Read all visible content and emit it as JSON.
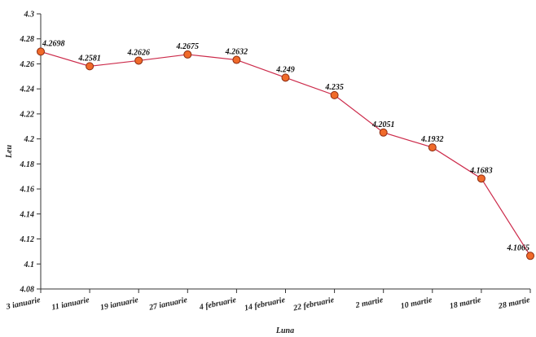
{
  "chart_data": {
    "type": "line",
    "categories": [
      "3 ianuarie",
      "11 ianuarie",
      "19 ianuarie",
      "27 ianuarie",
      "4 februarie",
      "14 februarie",
      "22 februarie",
      "2 martie",
      "10 martie",
      "18 martie",
      "28 martie"
    ],
    "series": [
      {
        "values": [
          4.2698,
          4.2581,
          4.2626,
          4.2675,
          4.2632,
          4.249,
          4.235,
          4.2051,
          4.1932,
          4.1683,
          4.1065
        ]
      }
    ],
    "data_labels": [
      "4.2698",
      "4.2581",
      "4.2626",
      "4.2675",
      "4.2632",
      "4.249",
      "4.235",
      "4.2051",
      "4.1932",
      "4.1683",
      "4.1065"
    ],
    "xlabel": "Luna",
    "ylabel": "Leu",
    "ylim": [
      4.08,
      4.3
    ],
    "yticks": [
      "4.08",
      "4.1",
      "4.12",
      "4.14",
      "4.16",
      "4.18",
      "4.2",
      "4.22",
      "4.24",
      "4.26",
      "4.28",
      "4.3"
    ],
    "grid": false,
    "legend": "none",
    "colors": {
      "line": "#cc2a4a",
      "marker_fill": "#f06a2a",
      "marker_stroke": "#8a2a10",
      "axis": "#333333"
    }
  }
}
